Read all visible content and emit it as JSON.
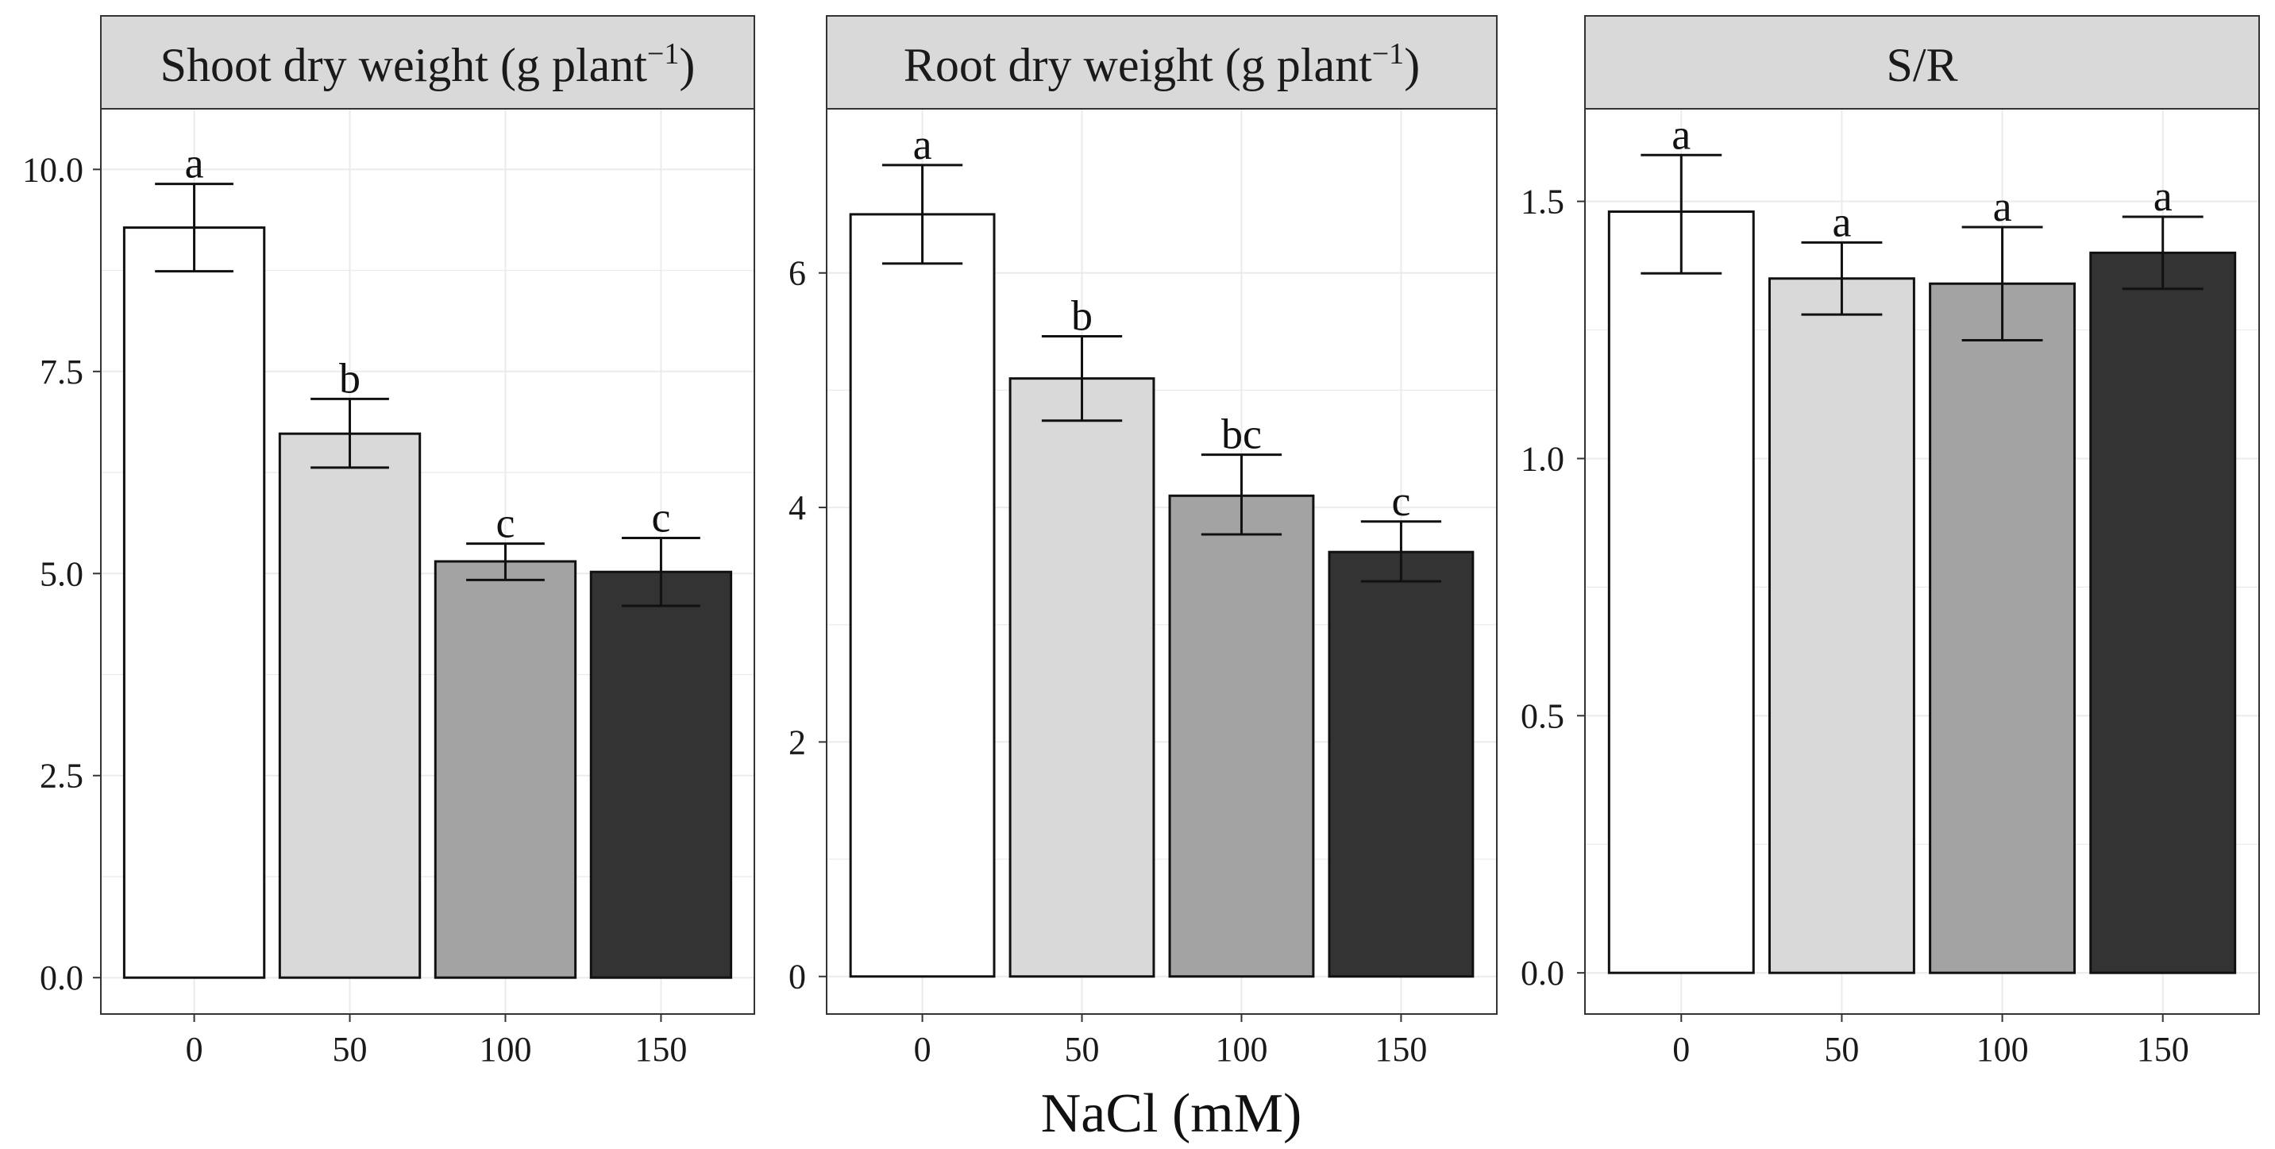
{
  "chart_data": [
    {
      "type": "bar",
      "title": "Shoot dry weight (g plant⁻¹)",
      "title_main": "Shoot dry weight (g plant",
      "title_sup": "−1",
      "title_close": ")",
      "categories": [
        "0",
        "50",
        "100",
        "150"
      ],
      "values": [
        9.28,
        6.73,
        5.15,
        5.02
      ],
      "error_low": [
        8.74,
        6.31,
        4.92,
        4.6
      ],
      "error_high": [
        9.82,
        7.16,
        5.37,
        5.44
      ],
      "significance": [
        "a",
        "b",
        "c",
        "c"
      ],
      "ylim": [
        -0.45,
        10.75
      ],
      "yticks": [
        0,
        2.5,
        5,
        7.5,
        10
      ],
      "ytick_labels": [
        "0.0",
        "2.5",
        "5.0",
        "7.5",
        "10.0"
      ],
      "xlabel": "NaCl (mM)",
      "ylabel": ""
    },
    {
      "type": "bar",
      "title": "Root dry weight (g plant⁻¹)",
      "title_main": "Root dry weight (g plant",
      "title_sup": "−1",
      "title_close": ")",
      "categories": [
        "0",
        "50",
        "100",
        "150"
      ],
      "values": [
        6.5,
        5.1,
        4.1,
        3.62
      ],
      "error_low": [
        6.08,
        4.74,
        3.77,
        3.37
      ],
      "error_high": [
        6.92,
        5.46,
        4.45,
        3.88
      ],
      "significance": [
        "a",
        "b",
        "bc",
        "c"
      ],
      "ylim": [
        -0.32,
        7.4
      ],
      "yticks": [
        0,
        2,
        4,
        6
      ],
      "ytick_labels": [
        "0",
        "2",
        "4",
        "6"
      ],
      "xlabel": "NaCl (mM)",
      "ylabel": ""
    },
    {
      "type": "bar",
      "title": "S/R",
      "title_main": "S/R",
      "title_sup": "",
      "title_close": "",
      "categories": [
        "0",
        "50",
        "100",
        "150"
      ],
      "values": [
        1.48,
        1.35,
        1.34,
        1.4
      ],
      "error_low": [
        1.36,
        1.28,
        1.23,
        1.33
      ],
      "error_high": [
        1.59,
        1.42,
        1.45,
        1.47
      ],
      "significance": [
        "a",
        "a",
        "a",
        "a"
      ],
      "ylim": [
        -0.08,
        1.68
      ],
      "yticks": [
        0,
        0.5,
        1,
        1.5
      ],
      "ytick_labels": [
        "0.0",
        "0.5",
        "1.0",
        "1.5"
      ],
      "xlabel": "NaCl (mM)",
      "ylabel": ""
    }
  ],
  "shared_xlabel": "NaCl (mM)",
  "bar_colors": [
    "#ffffff",
    "#d9d9d9",
    "#a3a3a3",
    "#333333"
  ],
  "strip_color": "#d9d9d9",
  "grid_color": "#ebebeb"
}
